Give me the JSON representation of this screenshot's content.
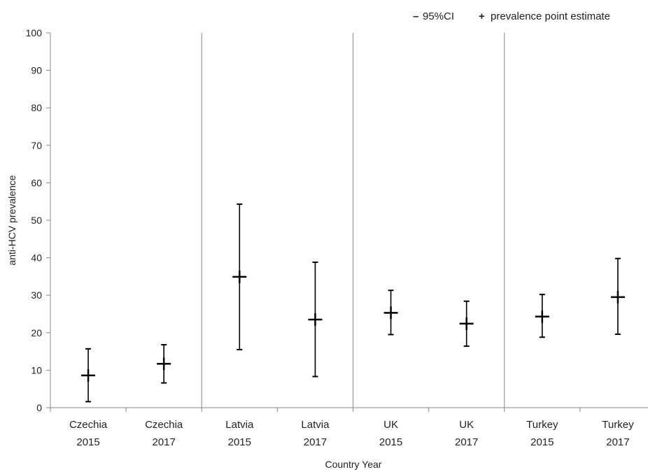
{
  "chart_data": {
    "type": "scatter",
    "xlabel": "Country Year",
    "ylabel": "anti-HCV prevalence",
    "ylim": [
      0,
      100
    ],
    "y_ticks": [
      "0",
      "10",
      "20",
      "30",
      "40",
      "50",
      "60",
      "70",
      "80",
      "90",
      "100"
    ],
    "grid": false,
    "legend_position": "top-right",
    "legend": [
      {
        "symbol": "–",
        "label": "95%CI"
      },
      {
        "symbol": "+",
        "label": "prevalence point estimate"
      }
    ],
    "group_separators_after": [
      2,
      4,
      6
    ],
    "categories": [
      {
        "country": "Czechia",
        "year": "2015"
      },
      {
        "country": "Czechia",
        "year": "2017"
      },
      {
        "country": "Latvia",
        "year": "2015"
      },
      {
        "country": "Latvia",
        "year": "2017"
      },
      {
        "country": "UK",
        "year": "2015"
      },
      {
        "country": "UK",
        "year": "2017"
      },
      {
        "country": "Turkey",
        "year": "2015"
      },
      {
        "country": "Turkey",
        "year": "2017"
      }
    ],
    "series": [
      {
        "values": [
          {
            "estimate": 8.6,
            "ci_low": 1.6,
            "ci_high": 15.7
          },
          {
            "estimate": 11.7,
            "ci_low": 6.6,
            "ci_high": 16.8
          },
          {
            "estimate": 34.9,
            "ci_low": 15.5,
            "ci_high": 54.3
          },
          {
            "estimate": 23.5,
            "ci_low": 8.3,
            "ci_high": 38.8
          },
          {
            "estimate": 25.3,
            "ci_low": 19.5,
            "ci_high": 31.3
          },
          {
            "estimate": 22.4,
            "ci_low": 16.4,
            "ci_high": 28.4
          },
          {
            "estimate": 24.3,
            "ci_low": 18.8,
            "ci_high": 30.2
          },
          {
            "estimate": 29.5,
            "ci_low": 19.6,
            "ci_high": 39.8
          }
        ]
      }
    ]
  }
}
